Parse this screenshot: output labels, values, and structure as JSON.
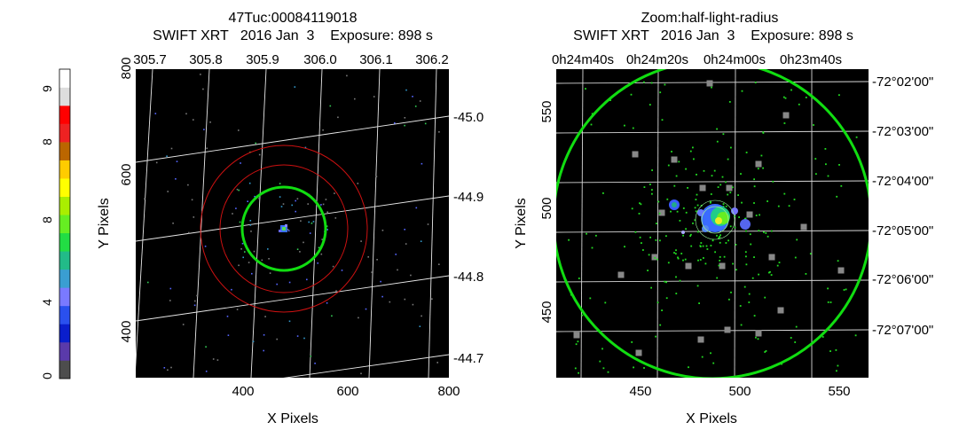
{
  "colorbar": {
    "tick_labels": [
      "0",
      "4",
      "8",
      "8",
      "9"
    ],
    "colors": [
      "#4d4d4d",
      "#5a3aaa",
      "#0a1ecc",
      "#2a50ee",
      "#7a7aff",
      "#3a9ed2",
      "#22bb88",
      "#22dd44",
      "#66ee22",
      "#aaee00",
      "#ffff00",
      "#ffcc00",
      "#bb6600",
      "#ee2222",
      "#ff0000",
      "#dddddd",
      "#ffffff"
    ]
  },
  "left_panel": {
    "title_line1": "47Tuc:00084119018",
    "title_line2": "SWIFT XRT   2016 Jan  3    Exposure: 898 s",
    "xlabel": "X Pixels",
    "ylabel": "Y Pixels",
    "bottom_ticks": [
      "400",
      "600",
      "800"
    ],
    "left_ticks": [
      "400",
      "600",
      "800"
    ],
    "top_ticks": [
      "305.7",
      "305.8",
      "305.9",
      "306.0",
      "306.1",
      "306.2"
    ],
    "right_ticks": [
      "-45.0",
      "-44.9",
      "-44.8",
      "-44.7"
    ]
  },
  "right_panel": {
    "title_line1": "Zoom:half-light-radius",
    "title_line2": "SWIFT XRT   2016 Jan  3    Exposure: 898 s",
    "xlabel": "X Pixels",
    "ylabel": "Y Pixels",
    "bottom_ticks": [
      "450",
      "500",
      "550"
    ],
    "left_ticks": [
      "450",
      "500",
      "550"
    ],
    "top_ticks": [
      "0h24m40s",
      "0h24m20s",
      "0h24m00s",
      "0h23m40s"
    ],
    "right_ticks": [
      "-72°02'00\"",
      "-72°03'00\"",
      "-72°04'00\"",
      "-72°05'00\"",
      "-72°06'00\"",
      "-72°07'00\""
    ]
  },
  "chart_data": [
    {
      "type": "heatmap",
      "title": "47Tuc:00084119018",
      "subtitle": "SWIFT XRT   2016 Jan  3    Exposure: 898 s",
      "xlabel": "X Pixels",
      "ylabel": "Y Pixels",
      "xlim": [
        205,
        800
      ],
      "ylim": [
        205,
        800
      ],
      "x_ticks": [
        400,
        600,
        800
      ],
      "y_ticks": [
        400,
        600,
        800
      ],
      "top_axis_ticks": [
        305.7,
        305.8,
        305.9,
        306.0,
        306.1,
        306.2
      ],
      "right_axis_ticks": [
        -45.0,
        -44.9,
        -44.8,
        -44.7
      ],
      "grid": true,
      "circles": [
        {
          "color": "#00dd00",
          "center": [
            487,
            490
          ],
          "radius": 80
        },
        {
          "color": "#cc0000",
          "center": [
            487,
            490
          ],
          "radius": 120
        },
        {
          "color": "#cc0000",
          "center": [
            487,
            490
          ],
          "radius": 160
        }
      ],
      "source_position": [
        487,
        490
      ]
    },
    {
      "type": "heatmap",
      "title": "Zoom:half-light-radius",
      "subtitle": "SWIFT XRT   2016 Jan  3    Exposure: 898 s",
      "xlabel": "X Pixels",
      "ylabel": "Y Pixels",
      "xlim": [
        405,
        565
      ],
      "ylim": [
        405,
        565
      ],
      "x_ticks": [
        450,
        500,
        550
      ],
      "y_ticks": [
        450,
        500,
        550
      ],
      "grid": true,
      "circles": [
        {
          "color": "#00dd00",
          "center": [
            487,
            490
          ],
          "radius": 80
        }
      ],
      "source_position": [
        490,
        490
      ]
    }
  ]
}
